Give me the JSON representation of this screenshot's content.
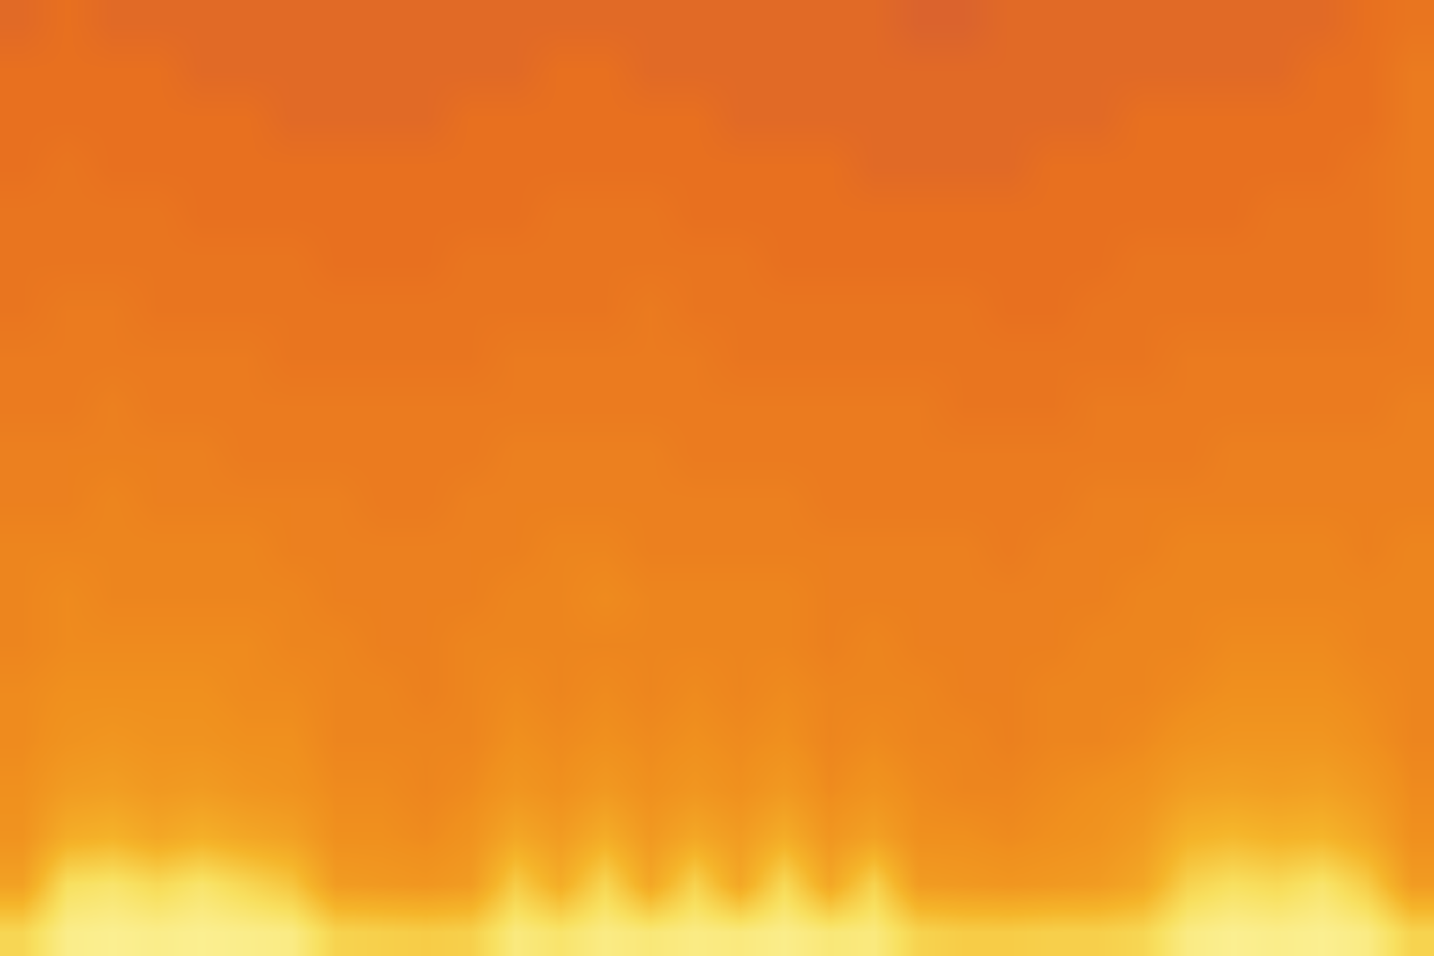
{
  "chart_data": {
    "type": "heatmap",
    "tick_labels": false,
    "zlim": [
      0,
      100
    ],
    "z": [
      [
        85,
        95,
        96,
        95,
        96,
        95,
        94,
        84,
        83,
        82,
        83,
        93,
        90,
        94,
        92,
        94,
        93,
        95,
        92,
        93,
        84,
        82,
        82,
        83,
        83,
        85,
        94,
        96,
        95,
        96,
        94,
        84
      ],
      [
        68,
        88,
        90,
        86,
        90,
        85,
        80,
        66,
        65,
        64,
        66,
        82,
        72,
        85,
        70,
        84,
        70,
        86,
        70,
        84,
        66,
        65,
        64,
        65,
        66,
        70,
        84,
        88,
        86,
        90,
        82,
        66
      ],
      [
        63,
        72,
        74,
        70,
        73,
        70,
        68,
        62,
        62,
        61,
        63,
        70,
        66,
        72,
        65,
        70,
        66,
        72,
        64,
        68,
        62,
        62,
        61,
        62,
        63,
        66,
        74,
        76,
        74,
        75,
        70,
        62
      ],
      [
        62,
        66,
        67,
        65,
        66,
        64,
        63,
        61,
        61,
        60,
        61,
        64,
        62,
        65,
        62,
        64,
        62,
        65,
        61,
        63,
        61,
        60,
        60,
        61,
        62,
        63,
        67,
        68,
        67,
        68,
        65,
        61
      ],
      [
        61,
        63,
        64,
        63,
        63,
        62,
        62,
        60,
        60,
        60,
        60,
        62,
        61,
        62,
        61,
        62,
        61,
        62,
        60,
        61,
        60,
        60,
        59,
        60,
        60,
        61,
        63,
        64,
        64,
        64,
        62,
        60
      ],
      [
        61,
        62,
        62,
        62,
        62,
        61,
        61,
        60,
        60,
        59,
        60,
        61,
        60,
        61,
        60,
        61,
        60,
        61,
        60,
        60,
        60,
        59,
        59,
        60,
        60,
        60,
        61,
        62,
        62,
        62,
        61,
        60
      ],
      [
        60,
        61,
        61,
        61,
        61,
        61,
        60,
        60,
        59,
        59,
        60,
        60,
        60,
        60,
        60,
        60,
        60,
        60,
        59,
        60,
        59,
        59,
        59,
        59,
        60,
        60,
        60,
        61,
        61,
        61,
        60,
        60
      ],
      [
        60,
        61,
        60,
        60,
        60,
        60,
        60,
        59,
        59,
        59,
        59,
        60,
        60,
        61,
        60,
        60,
        60,
        60,
        59,
        59,
        59,
        59,
        59,
        59,
        59,
        60,
        60,
        60,
        60,
        60,
        60,
        60
      ],
      [
        60,
        60,
        60,
        60,
        60,
        60,
        59,
        59,
        59,
        59,
        59,
        59,
        60,
        60,
        59,
        59,
        59,
        59,
        59,
        59,
        59,
        59,
        58,
        59,
        59,
        59,
        60,
        60,
        60,
        60,
        59,
        60
      ],
      [
        59,
        59,
        60,
        59,
        59,
        59,
        59,
        59,
        58,
        58,
        59,
        59,
        59,
        59,
        59,
        59,
        59,
        59,
        58,
        58,
        58,
        58,
        58,
        58,
        59,
        59,
        59,
        59,
        59,
        59,
        59,
        59
      ],
      [
        59,
        59,
        59,
        59,
        59,
        58,
        58,
        58,
        58,
        58,
        58,
        59,
        59,
        59,
        59,
        58,
        58,
        58,
        58,
        58,
        58,
        58,
        58,
        58,
        58,
        58,
        58,
        59,
        59,
        59,
        59,
        59
      ],
      [
        58,
        58,
        59,
        58,
        58,
        58,
        58,
        58,
        58,
        58,
        58,
        58,
        58,
        58,
        58,
        58,
        58,
        58,
        58,
        58,
        58,
        57,
        57,
        57,
        58,
        58,
        58,
        58,
        58,
        58,
        58,
        59
      ],
      [
        58,
        58,
        58,
        58,
        58,
        58,
        57,
        57,
        57,
        57,
        57,
        58,
        58,
        58,
        58,
        58,
        57,
        57,
        57,
        57,
        57,
        57,
        57,
        57,
        57,
        57,
        58,
        58,
        58,
        58,
        58,
        58
      ],
      [
        57,
        58,
        58,
        57,
        57,
        57,
        57,
        57,
        57,
        57,
        57,
        57,
        57,
        57,
        58,
        57,
        57,
        57,
        57,
        57,
        57,
        57,
        56,
        56,
        57,
        57,
        57,
        57,
        57,
        57,
        57,
        58
      ],
      [
        57,
        57,
        57,
        57,
        57,
        57,
        57,
        56,
        56,
        56,
        57,
        57,
        57,
        57,
        57,
        57,
        57,
        56,
        56,
        56,
        56,
        56,
        56,
        56,
        56,
        57,
        57,
        57,
        57,
        57,
        57,
        58
      ],
      [
        57,
        57,
        57,
        57,
        56,
        56,
        56,
        56,
        56,
        56,
        56,
        56,
        57,
        57,
        57,
        56,
        56,
        56,
        56,
        56,
        56,
        56,
        56,
        56,
        56,
        56,
        56,
        56,
        57,
        57,
        57,
        58
      ],
      [
        56,
        57,
        56,
        56,
        56,
        56,
        56,
        56,
        56,
        56,
        56,
        56,
        56,
        56,
        56,
        56,
        56,
        56,
        56,
        55,
        55,
        55,
        55,
        56,
        56,
        56,
        56,
        56,
        56,
        56,
        57,
        58
      ],
      [
        56,
        56,
        56,
        56,
        56,
        56,
        55,
        55,
        55,
        55,
        56,
        56,
        56,
        56,
        56,
        56,
        55,
        55,
        55,
        55,
        55,
        55,
        55,
        55,
        55,
        56,
        56,
        56,
        56,
        56,
        56,
        58
      ],
      [
        56,
        56,
        56,
        56,
        55,
        55,
        55,
        55,
        55,
        55,
        55,
        55,
        56,
        56,
        55,
        55,
        55,
        55,
        55,
        55,
        55,
        55,
        55,
        55,
        55,
        55,
        55,
        55,
        55,
        56,
        56,
        58
      ],
      [
        55,
        56,
        55,
        55,
        55,
        55,
        55,
        55,
        55,
        55,
        55,
        55,
        55,
        55,
        55,
        55,
        55,
        55,
        55,
        55,
        54,
        54,
        55,
        55,
        55,
        55,
        55,
        55,
        55,
        55,
        56,
        57
      ]
    ]
  }
}
